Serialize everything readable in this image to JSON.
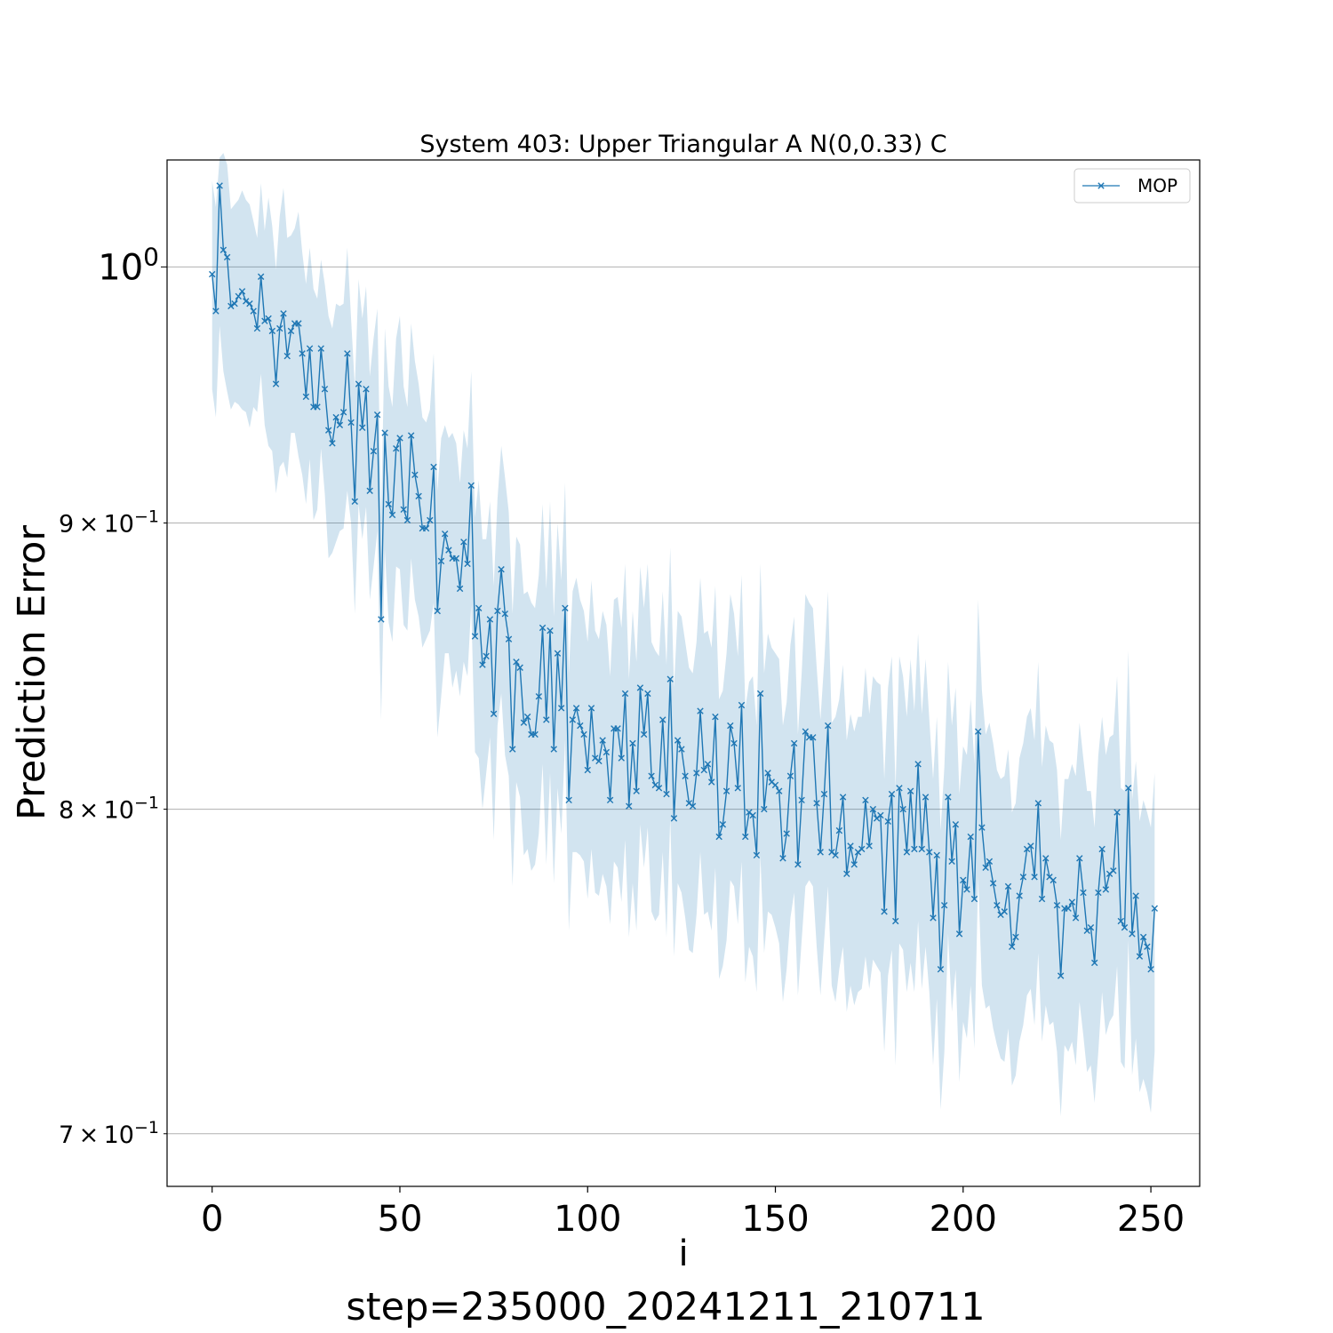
{
  "chart_data": {
    "type": "line",
    "title": "System 403: Upper Triangular A N(0,0.33) C",
    "xlabel": "i",
    "ylabel": "Prediction Error",
    "footer": "step=235000_20241211_210711",
    "xlim": [
      -12,
      263
    ],
    "ylim": [
      0.685,
      1.045
    ],
    "yscale": "log",
    "x_ticks": [
      0,
      50,
      100,
      150,
      200,
      250
    ],
    "x_tick_labels": [
      "0",
      "50",
      "100",
      "150",
      "200",
      "250"
    ],
    "y_ticks": [
      {
        "value": 1.0,
        "base": "10",
        "exp": "0"
      },
      {
        "value": 0.9,
        "mant": "9",
        "base": "10",
        "exp": "−1"
      },
      {
        "value": 0.8,
        "mant": "8",
        "base": "10",
        "exp": "−1"
      },
      {
        "value": 0.7,
        "mant": "7",
        "base": "10",
        "exp": "−1"
      }
    ],
    "grid_y": true,
    "legend_position": "upper-right",
    "series": [
      {
        "name": "MOP",
        "color": "#1f77b4",
        "band_color": "#1f77b4",
        "marker": "x",
        "x_start": 0,
        "x_step": 1,
        "y": [
          0.997,
          0.982,
          1.034,
          1.007,
          1.004,
          0.984,
          0.985,
          0.988,
          0.99,
          0.986,
          0.985,
          0.982,
          0.975,
          0.996,
          0.978,
          0.979,
          0.974,
          0.953,
          0.975,
          0.981,
          0.964,
          0.974,
          0.977,
          0.977,
          0.965,
          0.948,
          0.967,
          0.944,
          0.944,
          0.967,
          0.951,
          0.935,
          0.93,
          0.94,
          0.937,
          0.942,
          0.965,
          0.938,
          0.908,
          0.953,
          0.936,
          0.951,
          0.912,
          0.927,
          0.941,
          0.865,
          0.934,
          0.907,
          0.903,
          0.928,
          0.932,
          0.905,
          0.901,
          0.933,
          0.918,
          0.91,
          0.898,
          0.898,
          0.901,
          0.921,
          0.868,
          0.886,
          0.896,
          0.89,
          0.887,
          0.887,
          0.876,
          0.893,
          0.885,
          0.914,
          0.859,
          0.869,
          0.849,
          0.852,
          0.865,
          0.832,
          0.868,
          0.883,
          0.867,
          0.858,
          0.82,
          0.85,
          0.848,
          0.829,
          0.831,
          0.825,
          0.825,
          0.838,
          0.862,
          0.83,
          0.861,
          0.82,
          0.853,
          0.834,
          0.869,
          0.803,
          0.83,
          0.834,
          0.828,
          0.825,
          0.813,
          0.834,
          0.817,
          0.816,
          0.823,
          0.819,
          0.803,
          0.827,
          0.827,
          0.817,
          0.839,
          0.801,
          0.822,
          0.806,
          0.841,
          0.825,
          0.839,
          0.811,
          0.808,
          0.807,
          0.83,
          0.805,
          0.844,
          0.797,
          0.823,
          0.82,
          0.811,
          0.802,
          0.801,
          0.812,
          0.833,
          0.813,
          0.815,
          0.809,
          0.831,
          0.791,
          0.795,
          0.806,
          0.828,
          0.822,
          0.807,
          0.835,
          0.791,
          0.799,
          0.798,
          0.785,
          0.839,
          0.8,
          0.812,
          0.809,
          0.808,
          0.806,
          0.784,
          0.792,
          0.811,
          0.822,
          0.782,
          0.803,
          0.826,
          0.824,
          0.824,
          0.802,
          0.786,
          0.805,
          0.828,
          0.786,
          0.785,
          0.793,
          0.804,
          0.779,
          0.788,
          0.782,
          0.786,
          0.787,
          0.803,
          0.788,
          0.8,
          0.797,
          0.798,
          0.767,
          0.796,
          0.805,
          0.764,
          0.807,
          0.8,
          0.786,
          0.806,
          0.787,
          0.815,
          0.787,
          0.804,
          0.786,
          0.765,
          0.785,
          0.749,
          0.769,
          0.804,
          0.783,
          0.795,
          0.76,
          0.777,
          0.774,
          0.791,
          0.771,
          0.826,
          0.794,
          0.781,
          0.783,
          0.776,
          0.769,
          0.766,
          0.767,
          0.775,
          0.756,
          0.759,
          0.772,
          0.778,
          0.787,
          0.788,
          0.778,
          0.802,
          0.771,
          0.784,
          0.778,
          0.777,
          0.769,
          0.747,
          0.768,
          0.768,
          0.77,
          0.765,
          0.784,
          0.773,
          0.761,
          0.762,
          0.751,
          0.773,
          0.787,
          0.774,
          0.779,
          0.78,
          0.799,
          0.764,
          0.762,
          0.807,
          0.76,
          0.772,
          0.753,
          0.759,
          0.756,
          0.749,
          0.768
        ],
        "band_lower": [
          0.951,
          0.94,
          0.976,
          0.958,
          0.95,
          0.943,
          0.946,
          0.945,
          0.943,
          0.942,
          0.936,
          0.944,
          0.942,
          0.957,
          0.937,
          0.929,
          0.927,
          0.911,
          0.921,
          0.923,
          0.917,
          0.934,
          0.934,
          0.925,
          0.918,
          0.907,
          0.924,
          0.901,
          0.905,
          0.928,
          0.911,
          0.887,
          0.889,
          0.893,
          0.897,
          0.898,
          0.912,
          0.9,
          0.867,
          0.907,
          0.894,
          0.906,
          0.872,
          0.884,
          0.897,
          0.83,
          0.89,
          0.864,
          0.857,
          0.884,
          0.883,
          0.863,
          0.861,
          0.887,
          0.872,
          0.866,
          0.855,
          0.858,
          0.861,
          0.871,
          0.824,
          0.838,
          0.853,
          0.853,
          0.841,
          0.847,
          0.838,
          0.85,
          0.845,
          0.87,
          0.819,
          0.817,
          0.8,
          0.812,
          0.824,
          0.79,
          0.828,
          0.839,
          0.818,
          0.811,
          0.775,
          0.809,
          0.804,
          0.785,
          0.787,
          0.78,
          0.782,
          0.792,
          0.815,
          0.782,
          0.812,
          0.776,
          0.807,
          0.792,
          0.823,
          0.761,
          0.786,
          0.786,
          0.785,
          0.783,
          0.771,
          0.787,
          0.773,
          0.772,
          0.779,
          0.775,
          0.763,
          0.783,
          0.781,
          0.77,
          0.79,
          0.759,
          0.776,
          0.761,
          0.795,
          0.781,
          0.794,
          0.767,
          0.764,
          0.766,
          0.786,
          0.759,
          0.797,
          0.753,
          0.776,
          0.773,
          0.765,
          0.755,
          0.754,
          0.766,
          0.786,
          0.766,
          0.767,
          0.761,
          0.781,
          0.746,
          0.75,
          0.758,
          0.777,
          0.775,
          0.763,
          0.783,
          0.745,
          0.756,
          0.753,
          0.742,
          0.785,
          0.754,
          0.767,
          0.766,
          0.762,
          0.757,
          0.739,
          0.749,
          0.765,
          0.773,
          0.741,
          0.758,
          0.775,
          0.777,
          0.775,
          0.756,
          0.741,
          0.758,
          0.775,
          0.744,
          0.739,
          0.749,
          0.756,
          0.736,
          0.744,
          0.738,
          0.742,
          0.743,
          0.753,
          0.743,
          0.752,
          0.75,
          0.748,
          0.724,
          0.747,
          0.755,
          0.72,
          0.757,
          0.755,
          0.742,
          0.751,
          0.742,
          0.764,
          0.743,
          0.756,
          0.742,
          0.72,
          0.74,
          0.707,
          0.724,
          0.76,
          0.736,
          0.749,
          0.715,
          0.733,
          0.728,
          0.744,
          0.725,
          0.778,
          0.744,
          0.737,
          0.738,
          0.731,
          0.726,
          0.722,
          0.721,
          0.731,
          0.714,
          0.717,
          0.727,
          0.732,
          0.741,
          0.743,
          0.732,
          0.754,
          0.727,
          0.738,
          0.732,
          0.733,
          0.724,
          0.705,
          0.726,
          0.724,
          0.727,
          0.72,
          0.739,
          0.729,
          0.718,
          0.72,
          0.709,
          0.724,
          0.742,
          0.729,
          0.733,
          0.735,
          0.75,
          0.721,
          0.719,
          0.758,
          0.717,
          0.728,
          0.712,
          0.716,
          0.712,
          0.706,
          0.724
        ],
        "band_upper": [
          1.036,
          1.025,
          1.046,
          1.048,
          1.043,
          1.024,
          1.026,
          1.028,
          1.032,
          1.028,
          1.026,
          1.019,
          1.012,
          1.035,
          1.015,
          1.029,
          1.017,
          0.999,
          1.021,
          1.033,
          1.012,
          1.013,
          1.016,
          1.023,
          1.006,
          0.993,
          1.008,
          0.991,
          0.987,
          1.003,
          0.993,
          0.98,
          0.975,
          0.985,
          0.984,
          0.985,
          1.008,
          0.979,
          0.952,
          0.995,
          0.979,
          0.992,
          0.956,
          0.971,
          0.983,
          0.902,
          0.975,
          0.952,
          0.944,
          0.971,
          0.98,
          0.952,
          0.944,
          0.977,
          0.962,
          0.953,
          0.94,
          0.938,
          0.943,
          0.965,
          0.912,
          0.932,
          0.937,
          0.932,
          0.934,
          0.93,
          0.915,
          0.935,
          0.928,
          0.958,
          0.902,
          0.916,
          0.894,
          0.894,
          0.908,
          0.877,
          0.909,
          0.929,
          0.917,
          0.904,
          0.867,
          0.895,
          0.892,
          0.874,
          0.875,
          0.871,
          0.869,
          0.881,
          0.907,
          0.876,
          0.908,
          0.866,
          0.9,
          0.879,
          0.915,
          0.846,
          0.875,
          0.88,
          0.872,
          0.868,
          0.857,
          0.879,
          0.861,
          0.858,
          0.868,
          0.863,
          0.845,
          0.872,
          0.873,
          0.862,
          0.885,
          0.844,
          0.868,
          0.85,
          0.884,
          0.869,
          0.885,
          0.857,
          0.854,
          0.852,
          0.875,
          0.849,
          0.891,
          0.841,
          0.868,
          0.866,
          0.857,
          0.848,
          0.846,
          0.857,
          0.88,
          0.86,
          0.861,
          0.855,
          0.877,
          0.837,
          0.84,
          0.853,
          0.874,
          0.867,
          0.852,
          0.881,
          0.834,
          0.843,
          0.845,
          0.828,
          0.885,
          0.846,
          0.86,
          0.855,
          0.853,
          0.851,
          0.828,
          0.836,
          0.856,
          0.866,
          0.825,
          0.846,
          0.874,
          0.871,
          0.869,
          0.848,
          0.83,
          0.85,
          0.875,
          0.829,
          0.831,
          0.837,
          0.849,
          0.823,
          0.832,
          0.826,
          0.831,
          0.831,
          0.848,
          0.832,
          0.845,
          0.843,
          0.842,
          0.81,
          0.841,
          0.852,
          0.807,
          0.852,
          0.845,
          0.831,
          0.851,
          0.833,
          0.86,
          0.832,
          0.851,
          0.83,
          0.81,
          0.831,
          0.793,
          0.814,
          0.85,
          0.828,
          0.841,
          0.805,
          0.821,
          0.818,
          0.837,
          0.815,
          0.872,
          0.84,
          0.825,
          0.829,
          0.822,
          0.813,
          0.81,
          0.811,
          0.82,
          0.799,
          0.802,
          0.817,
          0.822,
          0.831,
          0.834,
          0.823,
          0.85,
          0.814,
          0.828,
          0.823,
          0.822,
          0.813,
          0.79,
          0.81,
          0.81,
          0.815,
          0.811,
          0.829,
          0.817,
          0.806,
          0.806,
          0.794,
          0.818,
          0.831,
          0.818,
          0.824,
          0.825,
          0.845,
          0.807,
          0.806,
          0.854,
          0.803,
          0.816,
          0.796,
          0.803,
          0.799,
          0.794,
          0.812
        ]
      }
    ]
  }
}
